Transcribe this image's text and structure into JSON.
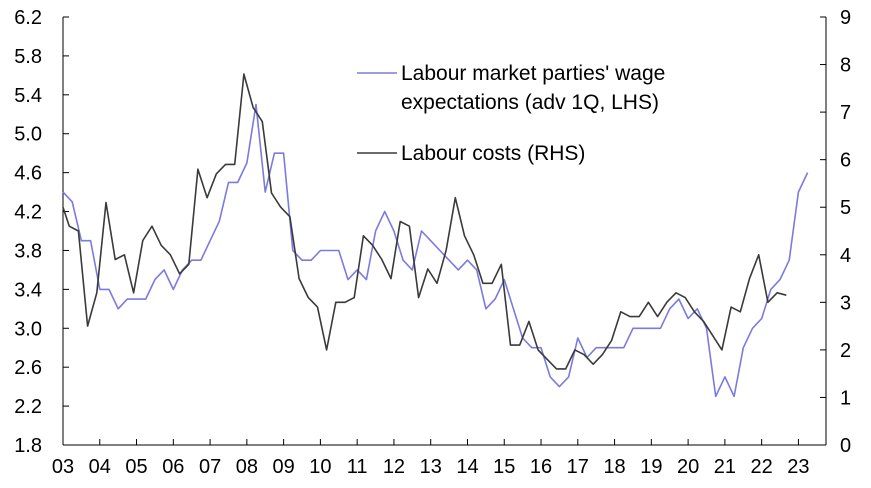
{
  "chart_data": {
    "type": "line",
    "x_tick_labels": [
      "03",
      "04",
      "05",
      "06",
      "07",
      "08",
      "09",
      "10",
      "11",
      "12",
      "13",
      "14",
      "15",
      "16",
      "17",
      "18",
      "19",
      "20",
      "21",
      "22",
      "23"
    ],
    "y_left_ticks": [
      "1.8",
      "2.2",
      "2.6",
      "3.0",
      "3.4",
      "3.8",
      "4.2",
      "4.6",
      "5.0",
      "5.4",
      "5.8",
      "6.2"
    ],
    "y_right_ticks": [
      "0",
      "1",
      "2",
      "3",
      "4",
      "5",
      "6",
      "7",
      "8",
      "9"
    ],
    "ylim_left": [
      1.8,
      6.2
    ],
    "ylim_right": [
      0,
      9
    ],
    "xlim": [
      2003.0,
      2023.75
    ],
    "legend_position": "top-center",
    "grid": false,
    "series": [
      {
        "name": "Labour market parties' wage expectations (adv 1Q, LHS)",
        "axis": "left",
        "color": "#7b7bdf",
        "points": [
          [
            2003.0,
            4.4
          ],
          [
            2003.25,
            4.3
          ],
          [
            2003.5,
            3.9
          ],
          [
            2003.75,
            3.9
          ],
          [
            2004.0,
            3.4
          ],
          [
            2004.25,
            3.4
          ],
          [
            2004.5,
            3.2
          ],
          [
            2004.75,
            3.3
          ],
          [
            2005.0,
            3.3
          ],
          [
            2005.25,
            3.3
          ],
          [
            2005.5,
            3.5
          ],
          [
            2005.75,
            3.6
          ],
          [
            2006.0,
            3.4
          ],
          [
            2006.25,
            3.6
          ],
          [
            2006.5,
            3.7
          ],
          [
            2006.75,
            3.7
          ],
          [
            2007.0,
            3.9
          ],
          [
            2007.25,
            4.1
          ],
          [
            2007.5,
            4.5
          ],
          [
            2007.75,
            4.5
          ],
          [
            2008.0,
            4.7
          ],
          [
            2008.25,
            5.3
          ],
          [
            2008.5,
            4.4
          ],
          [
            2008.75,
            4.8
          ],
          [
            2009.0,
            4.8
          ],
          [
            2009.25,
            3.8
          ],
          [
            2009.5,
            3.7
          ],
          [
            2009.75,
            3.7
          ],
          [
            2010.0,
            3.8
          ],
          [
            2010.25,
            3.8
          ],
          [
            2010.5,
            3.8
          ],
          [
            2010.75,
            3.5
          ],
          [
            2011.0,
            3.6
          ],
          [
            2011.25,
            3.5
          ],
          [
            2011.5,
            4.0
          ],
          [
            2011.75,
            4.2
          ],
          [
            2012.0,
            4.0
          ],
          [
            2012.25,
            3.7
          ],
          [
            2012.5,
            3.6
          ],
          [
            2012.75,
            4.0
          ],
          [
            2013.0,
            3.9
          ],
          [
            2013.25,
            3.8
          ],
          [
            2013.5,
            3.7
          ],
          [
            2013.75,
            3.6
          ],
          [
            2014.0,
            3.7
          ],
          [
            2014.25,
            3.6
          ],
          [
            2014.5,
            3.2
          ],
          [
            2014.75,
            3.3
          ],
          [
            2015.0,
            3.5
          ],
          [
            2015.25,
            3.2
          ],
          [
            2015.5,
            2.9
          ],
          [
            2015.75,
            2.8
          ],
          [
            2016.0,
            2.8
          ],
          [
            2016.25,
            2.5
          ],
          [
            2016.5,
            2.4
          ],
          [
            2016.75,
            2.5
          ],
          [
            2017.0,
            2.9
          ],
          [
            2017.25,
            2.7
          ],
          [
            2017.5,
            2.8
          ],
          [
            2017.75,
            2.8
          ],
          [
            2018.0,
            2.8
          ],
          [
            2018.25,
            2.8
          ],
          [
            2018.5,
            3.0
          ],
          [
            2018.75,
            3.0
          ],
          [
            2019.0,
            3.0
          ],
          [
            2019.25,
            3.0
          ],
          [
            2019.5,
            3.2
          ],
          [
            2019.75,
            3.3
          ],
          [
            2020.0,
            3.1
          ],
          [
            2020.25,
            3.2
          ],
          [
            2020.5,
            3.0
          ],
          [
            2020.75,
            2.3
          ],
          [
            2021.0,
            2.5
          ],
          [
            2021.25,
            2.3
          ],
          [
            2021.5,
            2.8
          ],
          [
            2021.75,
            3.0
          ],
          [
            2022.0,
            3.1
          ],
          [
            2022.25,
            3.4
          ],
          [
            2022.5,
            3.5
          ],
          [
            2022.75,
            3.7
          ],
          [
            2023.0,
            4.4
          ],
          [
            2023.25,
            4.6
          ]
        ]
      },
      {
        "name": "Labour costs (RHS)",
        "axis": "right",
        "color": "#3a3a3a",
        "points": [
          [
            2003.0,
            5.0
          ],
          [
            2003.17,
            4.6
          ],
          [
            2003.42,
            4.5
          ],
          [
            2003.67,
            2.5
          ],
          [
            2003.92,
            3.2
          ],
          [
            2004.17,
            5.1
          ],
          [
            2004.42,
            3.9
          ],
          [
            2004.67,
            4.0
          ],
          [
            2004.92,
            3.2
          ],
          [
            2005.17,
            4.3
          ],
          [
            2005.42,
            4.6
          ],
          [
            2005.67,
            4.2
          ],
          [
            2005.92,
            4.0
          ],
          [
            2006.17,
            3.6
          ],
          [
            2006.42,
            3.8
          ],
          [
            2006.67,
            5.8
          ],
          [
            2006.92,
            5.2
          ],
          [
            2007.17,
            5.7
          ],
          [
            2007.42,
            5.9
          ],
          [
            2007.67,
            5.9
          ],
          [
            2007.92,
            7.8
          ],
          [
            2008.17,
            7.1
          ],
          [
            2008.42,
            6.8
          ],
          [
            2008.67,
            5.3
          ],
          [
            2008.92,
            5.0
          ],
          [
            2009.17,
            4.8
          ],
          [
            2009.42,
            3.5
          ],
          [
            2009.67,
            3.1
          ],
          [
            2009.92,
            2.9
          ],
          [
            2010.17,
            2.0
          ],
          [
            2010.42,
            3.0
          ],
          [
            2010.67,
            3.0
          ],
          [
            2010.92,
            3.1
          ],
          [
            2011.17,
            4.4
          ],
          [
            2011.42,
            4.2
          ],
          [
            2011.67,
            3.9
          ],
          [
            2011.92,
            3.5
          ],
          [
            2012.17,
            4.7
          ],
          [
            2012.42,
            4.6
          ],
          [
            2012.67,
            3.1
          ],
          [
            2012.92,
            3.7
          ],
          [
            2013.17,
            3.4
          ],
          [
            2013.42,
            4.1
          ],
          [
            2013.67,
            5.2
          ],
          [
            2013.92,
            4.4
          ],
          [
            2014.17,
            4.0
          ],
          [
            2014.42,
            3.4
          ],
          [
            2014.67,
            3.4
          ],
          [
            2014.92,
            3.8
          ],
          [
            2015.17,
            2.1
          ],
          [
            2015.42,
            2.1
          ],
          [
            2015.67,
            2.6
          ],
          [
            2015.92,
            2.0
          ],
          [
            2016.17,
            1.8
          ],
          [
            2016.42,
            1.6
          ],
          [
            2016.67,
            1.6
          ],
          [
            2016.92,
            2.0
          ],
          [
            2017.17,
            1.9
          ],
          [
            2017.42,
            1.7
          ],
          [
            2017.67,
            1.9
          ],
          [
            2017.92,
            2.2
          ],
          [
            2018.17,
            2.8
          ],
          [
            2018.42,
            2.7
          ],
          [
            2018.67,
            2.7
          ],
          [
            2018.92,
            3.0
          ],
          [
            2019.17,
            2.7
          ],
          [
            2019.42,
            3.0
          ],
          [
            2019.67,
            3.2
          ],
          [
            2019.92,
            3.1
          ],
          [
            2020.17,
            2.8
          ],
          [
            2020.42,
            2.6
          ],
          [
            2020.67,
            2.3
          ],
          [
            2020.92,
            2.0
          ],
          [
            2021.17,
            2.9
          ],
          [
            2021.42,
            2.8
          ],
          [
            2021.67,
            3.5
          ],
          [
            2021.92,
            4.0
          ],
          [
            2022.17,
            3.0
          ],
          [
            2022.42,
            3.2
          ],
          [
            2022.67,
            3.15
          ]
        ]
      }
    ],
    "legend": [
      {
        "lines": [
          "Labour market parties' wage",
          "expectations (adv 1Q, LHS)"
        ],
        "series": 0
      },
      {
        "lines": [
          "Labour costs (RHS)"
        ],
        "series": 1
      }
    ]
  }
}
